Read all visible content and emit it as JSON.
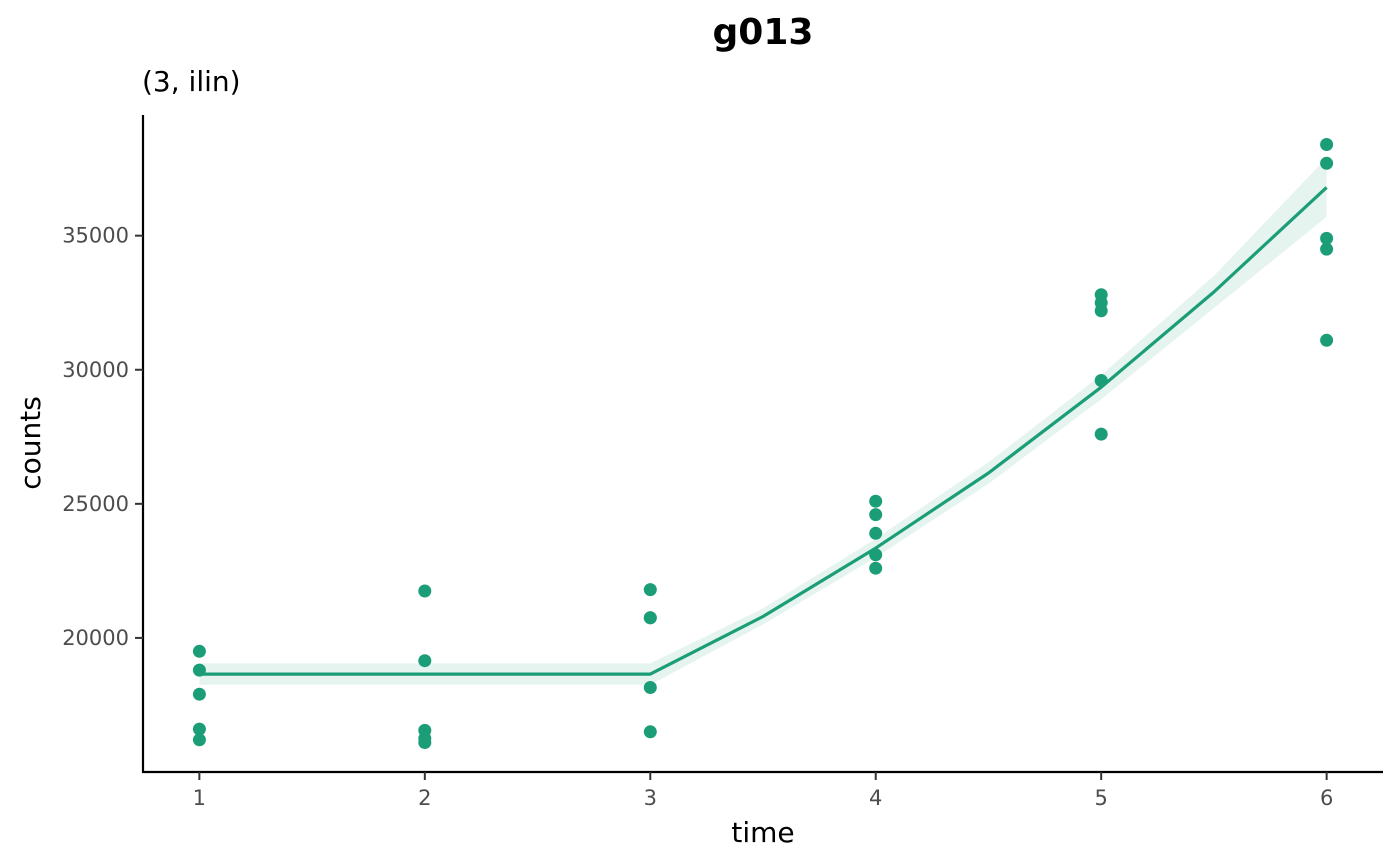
{
  "chart_data": {
    "type": "scatter",
    "title": "g013",
    "subtitle": "(3, ilin)",
    "xlabel": "time",
    "ylabel": "counts",
    "xlim": [
      0.75,
      6.25
    ],
    "ylim": [
      15000,
      39500
    ],
    "x_ticks": [
      1,
      2,
      3,
      4,
      5,
      6
    ],
    "y_ticks": [
      20000,
      25000,
      30000,
      35000
    ],
    "grid": false,
    "legend": "none",
    "color": "#1b9e77",
    "ribbon_color": "#e6f4ef",
    "points": [
      {
        "x": 1,
        "y": 19500
      },
      {
        "x": 1,
        "y": 18800
      },
      {
        "x": 1,
        "y": 17900
      },
      {
        "x": 1,
        "y": 16600
      },
      {
        "x": 1,
        "y": 16200
      },
      {
        "x": 2,
        "y": 21750
      },
      {
        "x": 2,
        "y": 19150
      },
      {
        "x": 2,
        "y": 16550
      },
      {
        "x": 2,
        "y": 16250
      },
      {
        "x": 2,
        "y": 16100
      },
      {
        "x": 3,
        "y": 21800
      },
      {
        "x": 3,
        "y": 20750
      },
      {
        "x": 3,
        "y": 20750
      },
      {
        "x": 3,
        "y": 18150
      },
      {
        "x": 3,
        "y": 16500
      },
      {
        "x": 4,
        "y": 25100
      },
      {
        "x": 4,
        "y": 24600
      },
      {
        "x": 4,
        "y": 23900
      },
      {
        "x": 4,
        "y": 23100
      },
      {
        "x": 4,
        "y": 22600
      },
      {
        "x": 5,
        "y": 32800
      },
      {
        "x": 5,
        "y": 32500
      },
      {
        "x": 5,
        "y": 32200
      },
      {
        "x": 5,
        "y": 29600
      },
      {
        "x": 5,
        "y": 27600
      },
      {
        "x": 6,
        "y": 38400
      },
      {
        "x": 6,
        "y": 37700
      },
      {
        "x": 6,
        "y": 34900
      },
      {
        "x": 6,
        "y": 34500
      },
      {
        "x": 6,
        "y": 31100
      }
    ],
    "fit_line": [
      {
        "x": 1,
        "y": 18650
      },
      {
        "x": 1.5,
        "y": 18650
      },
      {
        "x": 2,
        "y": 18650
      },
      {
        "x": 2.5,
        "y": 18650
      },
      {
        "x": 3,
        "y": 18650
      },
      {
        "x": 3.5,
        "y": 20800
      },
      {
        "x": 4,
        "y": 23350
      },
      {
        "x": 4.5,
        "y": 26150
      },
      {
        "x": 5,
        "y": 29350
      },
      {
        "x": 5.5,
        "y": 32900
      },
      {
        "x": 6,
        "y": 36800
      }
    ],
    "fit_band": [
      {
        "x": 1,
        "lo": 18250,
        "hi": 19050
      },
      {
        "x": 1.5,
        "lo": 18250,
        "hi": 19050
      },
      {
        "x": 2,
        "lo": 18250,
        "hi": 19050
      },
      {
        "x": 2.5,
        "lo": 18250,
        "hi": 19050
      },
      {
        "x": 3,
        "lo": 18250,
        "hi": 19050
      },
      {
        "x": 3.5,
        "lo": 20500,
        "hi": 21100
      },
      {
        "x": 4,
        "lo": 23000,
        "hi": 23700
      },
      {
        "x": 4.5,
        "lo": 25750,
        "hi": 26550
      },
      {
        "x": 5,
        "lo": 28900,
        "hi": 29800
      },
      {
        "x": 5.5,
        "lo": 32300,
        "hi": 33500
      },
      {
        "x": 6,
        "lo": 35700,
        "hi": 37900
      }
    ]
  }
}
